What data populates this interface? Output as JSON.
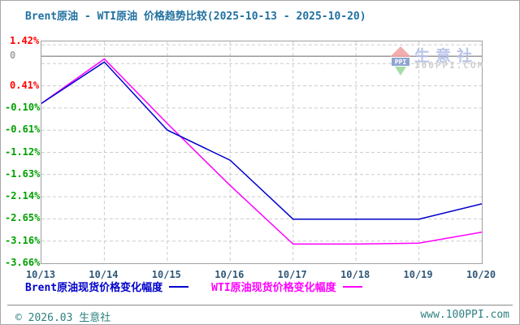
{
  "title": "Brent原油 - WTI原油 价格趋势比较(2025-10-13 - 2025-10-20)",
  "chart_data": {
    "type": "line",
    "x": [
      "10/13",
      "10/14",
      "10/15",
      "10/16",
      "10/17",
      "10/18",
      "10/19",
      "10/20"
    ],
    "series": [
      {
        "name": "Brent原油现货价格变化幅度",
        "color": "#0000CC",
        "values": [
          0.0,
          0.95,
          -0.61,
          -1.3,
          -2.65,
          -2.65,
          -2.65,
          -2.3
        ]
      },
      {
        "name": "WTI原油现货价格变化幅度",
        "color": "#FF00FF",
        "values": [
          0.0,
          1.02,
          -0.46,
          -1.88,
          -3.22,
          -3.22,
          -3.2,
          -2.95
        ]
      }
    ],
    "ylim": [
      -3.66,
      1.42
    ],
    "y_ticks": [
      {
        "label": "1.42%",
        "g": 0,
        "color": "#FF0000"
      },
      {
        "label": "0",
        "g": 0.85,
        "color": "#A0A0A0"
      },
      {
        "label": "0.41%",
        "g": 2,
        "color": "#FF0000"
      },
      {
        "label": "-0.10%",
        "g": 3,
        "color": "#00A000"
      },
      {
        "label": "-0.61%",
        "g": 4,
        "color": "#00A000"
      },
      {
        "label": "-1.12%",
        "g": 5,
        "color": "#00A000"
      },
      {
        "label": "-1.63%",
        "g": 6,
        "color": "#00A000"
      },
      {
        "label": "-2.14%",
        "g": 7,
        "color": "#00A000"
      },
      {
        "label": "-2.65%",
        "g": 8,
        "color": "#00A000"
      },
      {
        "label": "-3.16%",
        "g": 9,
        "color": "#00A000"
      },
      {
        "label": "-3.66%",
        "g": 10,
        "color": "#00A000"
      }
    ],
    "zero_line_g": 0.85,
    "grid": true,
    "legend_position": "bottom"
  },
  "legend": {
    "items": [
      {
        "label": "Brent原油现货价格变化幅度",
        "color": "#0000CC"
      },
      {
        "label": "WTI原油现货价格变化幅度",
        "color": "#FF00FF"
      }
    ]
  },
  "watermark": {
    "brand": "生意社",
    "site": "100PPI.COM",
    "icon": "ppi-house-logo"
  },
  "footer": {
    "left": "© 2026.03 生意社",
    "right": "www.100PPI.com"
  },
  "colors": {
    "title": "#2070A0",
    "x_label": "#305878",
    "grid": "#CCCCCC",
    "plot_border": "#A0A0A0",
    "zero_line": "#999999",
    "footer_text": "#2E8080",
    "wm_brand": "#B0BCE4",
    "wm_site": "#C6C6C6",
    "wm_roof": "#F0A0A0",
    "wm_box": "#7B96CC",
    "wm_diamond": "#98D898"
  }
}
